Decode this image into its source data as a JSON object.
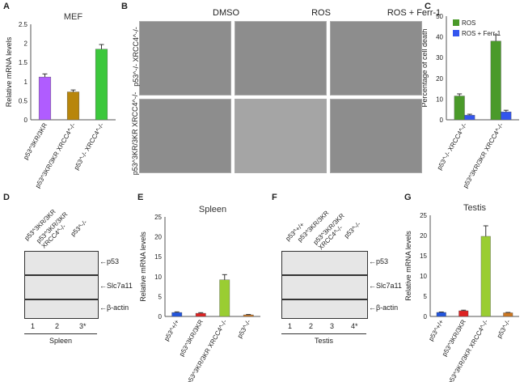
{
  "panels": {
    "A": {
      "label": "A",
      "chart_data": {
        "type": "bar",
        "title": "MEF",
        "ylabel": "Relative mRNA levels",
        "ylim": [
          0,
          2.5
        ],
        "yticks": [
          "0",
          "0.5",
          "1",
          "1.5",
          "2",
          "2.5"
        ],
        "categories": [
          "p53^3KR/3KR",
          "p53^3KR/3KR XRCC4^-/-",
          "p53^-/- XRCC4^-/-"
        ],
        "values": [
          1.12,
          0.73,
          1.85
        ],
        "errors": [
          0.08,
          0.05,
          0.12
        ],
        "colors": [
          "#b05cff",
          "#b8860b",
          "#3cc83c"
        ]
      }
    },
    "B": {
      "label": "B",
      "columns": [
        "DMSO",
        "ROS",
        "ROS + Ferr-1"
      ],
      "rows": [
        "p53^-/- XRCC4^-/-",
        "p53^3KR/3KR XRCC4^-/-"
      ]
    },
    "C": {
      "label": "C",
      "chart_data": {
        "type": "bar",
        "ylabel": "Percentage of cell death",
        "ylim": [
          0,
          50
        ],
        "yticks": [
          "0",
          "10",
          "20",
          "30",
          "40",
          "50"
        ],
        "categories": [
          "p53^-/- XRCC4^-/-",
          "p53^3KR/3KR XRCC4^-/-"
        ],
        "legend_position": "top-right",
        "series": [
          {
            "name": "ROS",
            "values": [
              11.5,
              38
            ],
            "errors": [
              1.0,
              3.0
            ],
            "color": "#4a9a2a"
          },
          {
            "name": "ROS + Ferr-1",
            "values": [
              2.2,
              3.8
            ],
            "errors": [
              0.5,
              0.8
            ],
            "color": "#3355ee"
          }
        ]
      }
    },
    "D": {
      "label": "D",
      "lanes": [
        "p53^3KR/3KR",
        "p53^3KR/3KR XRCC4^-/-",
        "p53^-/-"
      ],
      "bands": [
        "p53",
        "Slc7a11",
        "β-actin"
      ],
      "lane_numbers": [
        "1",
        "2",
        "3*"
      ],
      "tissue": "Spleen"
    },
    "E": {
      "label": "E",
      "chart_data": {
        "type": "bar",
        "title": "Spleen",
        "ylabel": "Relative mRNA levels",
        "ylim": [
          0,
          25
        ],
        "yticks": [
          "0",
          "5",
          "10",
          "15",
          "20",
          "25"
        ],
        "categories": [
          "p53^+/+",
          "p53^3KR/3KR",
          "p53^3KR/3KR XRCC4^-/-",
          "p53^-/-"
        ],
        "values": [
          1.0,
          0.8,
          9.2,
          0.4
        ],
        "errors": [
          0.15,
          0.15,
          1.3,
          0.1
        ],
        "colors": [
          "#2255dd",
          "#dd2222",
          "#9acd32",
          "#cc7722"
        ]
      }
    },
    "F": {
      "label": "F",
      "lanes": [
        "p53^+/+",
        "p53^3KR/3KR",
        "p53^3KR/3KR XRCC4^-/-",
        "p53^-/-"
      ],
      "bands": [
        "p53",
        "Slc7a11",
        "β-actin"
      ],
      "lane_numbers": [
        "1",
        "2",
        "3",
        "4*"
      ],
      "tissue": "Testis"
    },
    "G": {
      "label": "G",
      "chart_data": {
        "type": "bar",
        "title": "Testis",
        "ylabel": "Relative mRNA levels",
        "ylim": [
          0,
          25
        ],
        "yticks": [
          "0",
          "5",
          "10",
          "15",
          "20",
          "25"
        ],
        "categories": [
          "p53^+/+",
          "p53^3KR/3KR",
          "p53^3KR/3KR XRCC4^-/-",
          "p53^-/-"
        ],
        "values": [
          1.0,
          1.4,
          19.8,
          0.9
        ],
        "errors": [
          0.1,
          0.15,
          2.6,
          0.1
        ],
        "colors": [
          "#2255dd",
          "#dd2222",
          "#9acd32",
          "#cc7722"
        ]
      }
    }
  }
}
